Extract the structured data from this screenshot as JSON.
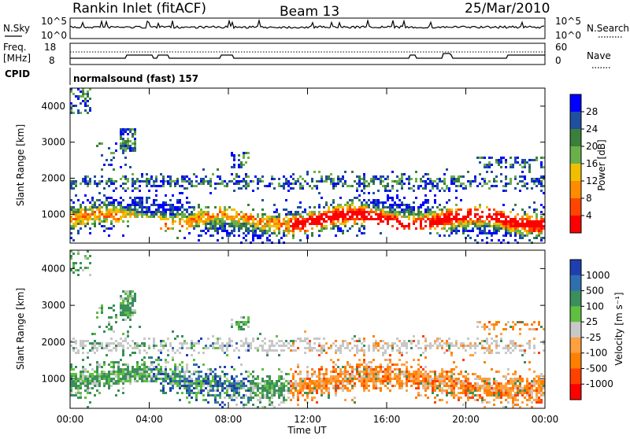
{
  "header": {
    "station": "Rankin Inlet (fitACF)",
    "beam": "Beam 13",
    "date": "25/Mar/2010"
  },
  "panels": {
    "nsky": {
      "label": "N.Sky",
      "ticks": [
        "10^5",
        "10^0"
      ],
      "right_label": "N.Search",
      "right_ticks": [
        "10^5",
        "10^0"
      ]
    },
    "freq": {
      "label_line1": "Freq.",
      "label_line2": "[MHz]",
      "ticks": [
        "18",
        "8"
      ],
      "right_label": "Nave",
      "right_ticks": [
        "60",
        "0"
      ]
    },
    "cpid": {
      "label": "CPID",
      "program": "normalsound (fast) 157"
    }
  },
  "colors": {
    "power": [
      "#0000ff",
      "#1e4fa0",
      "#3a7f3a",
      "#6ab04a",
      "#f0c000",
      "#ff8c00",
      "#ff4500",
      "#ff0000"
    ],
    "velocity": [
      "#1f3fb0",
      "#2f6fb0",
      "#3a8f5a",
      "#5fbf3f",
      "#c8c8c8",
      "#ffa040",
      "#ff8000",
      "#ff4000",
      "#ff0000"
    ]
  },
  "chart_data": [
    {
      "type": "heatmap",
      "name": "power",
      "ylabel": "Slant Range [km]",
      "yticks": [
        "4000",
        "3000",
        "2000",
        "1000"
      ],
      "ylim": [
        200,
        4500
      ],
      "colorbar_label": "Power [dB]",
      "colorbar_ticks": [
        "28",
        "24",
        "20",
        "16",
        "12",
        "8",
        "4"
      ]
    },
    {
      "type": "heatmap",
      "name": "velocity",
      "ylabel": "Slant Range [km]",
      "yticks": [
        "4000",
        "3000",
        "2000",
        "1000"
      ],
      "ylim": [
        200,
        4500
      ],
      "colorbar_label": "Velocity [m s⁻¹]",
      "colorbar_ticks": [
        "1000",
        "500",
        "100",
        "25",
        "-25",
        "-100",
        "-500",
        "-1000"
      ]
    }
  ],
  "xaxis": {
    "label": "Time UT",
    "ticks": [
      "00:00",
      "04:00",
      "08:00",
      "12:00",
      "16:00",
      "20:00",
      "00:00"
    ],
    "xlim_hours": [
      0,
      24
    ]
  }
}
